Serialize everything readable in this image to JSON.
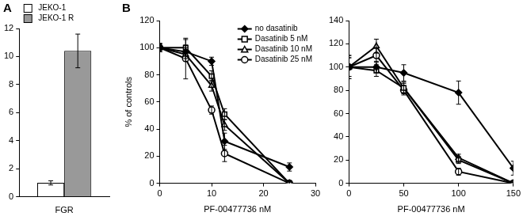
{
  "chart_data": [
    {
      "type": "bar",
      "title": "A",
      "categories": [
        "FGR"
      ],
      "series": [
        {
          "name": "JEKO-1",
          "color": "#ffffff",
          "values": [
            1.0
          ],
          "errors": [
            0.15
          ]
        },
        {
          "name": "JEKO-1 R",
          "color": "#999999",
          "values": [
            10.4
          ],
          "errors": [
            1.2
          ]
        }
      ],
      "ylim": [
        0,
        12
      ],
      "yticks": [
        0,
        2,
        4,
        6,
        8,
        10,
        12
      ],
      "grid": false,
      "legend": "top-left"
    },
    {
      "type": "line",
      "title": "B",
      "xlabel": "PF-00477736 nM",
      "ylabel": "% of controls",
      "x": [
        0,
        5,
        10,
        12.5,
        25
      ],
      "series": [
        {
          "name": "no dasatinib",
          "color": "#000000",
          "marker": "diamond",
          "values": [
            100,
            97,
            90,
            31,
            12
          ],
          "errors": [
            3,
            5,
            3,
            6,
            3
          ]
        },
        {
          "name": "Dasatinib 5 nM",
          "color": "#000000",
          "marker": "open_square",
          "values": [
            100,
            100,
            79,
            51,
            0
          ],
          "errors": [
            3,
            6,
            4,
            4,
            1
          ]
        },
        {
          "name": "Dasatinib 10 nM",
          "color": "#000000",
          "marker": "open_triangle",
          "values": [
            100,
            95,
            72,
            43,
            0
          ],
          "errors": [
            3,
            5,
            4,
            4,
            1
          ]
        },
        {
          "name": "Dasatinib 25 nM",
          "color": "#000000",
          "marker": "open_circle",
          "values": [
            100,
            92,
            54,
            22,
            0
          ],
          "errors": [
            3,
            15,
            3,
            6,
            1
          ]
        }
      ],
      "xlim": [
        0,
        30
      ],
      "xticks": [
        0,
        10,
        20,
        30
      ],
      "ylim": [
        0,
        120
      ],
      "yticks": [
        0,
        20,
        40,
        60,
        80,
        100,
        120
      ],
      "grid": false,
      "legend": "top-right"
    },
    {
      "type": "line",
      "xlabel": "PF-00477736 nM",
      "x": [
        0,
        25,
        50,
        100,
        150
      ],
      "series": [
        {
          "name": "no dasatinib",
          "color": "#000000",
          "marker": "diamond",
          "values": [
            100,
            100,
            95,
            78,
            13
          ],
          "errors": [
            10,
            5,
            7,
            10,
            6
          ]
        },
        {
          "name": "Dasatinib 5 nM",
          "color": "#000000",
          "marker": "open_square",
          "values": [
            100,
            97,
            82,
            20,
            0
          ],
          "errors": [
            8,
            5,
            5,
            3,
            1
          ]
        },
        {
          "name": "Dasatinib 10 nM",
          "color": "#000000",
          "marker": "open_triangle",
          "values": [
            100,
            118,
            82,
            22,
            0
          ],
          "errors": [
            10,
            6,
            4,
            3,
            1
          ]
        },
        {
          "name": "Dasatinib 25 nM",
          "color": "#000000",
          "marker": "open_circle",
          "values": [
            100,
            110,
            80,
            10,
            0
          ],
          "errors": [
            8,
            6,
            4,
            3,
            1
          ]
        }
      ],
      "xlim": [
        0,
        150
      ],
      "xticks": [
        0,
        50,
        100,
        150
      ],
      "ylim": [
        0,
        140
      ],
      "yticks": [
        0,
        20,
        40,
        60,
        80,
        100,
        120,
        140
      ],
      "grid": false
    }
  ]
}
